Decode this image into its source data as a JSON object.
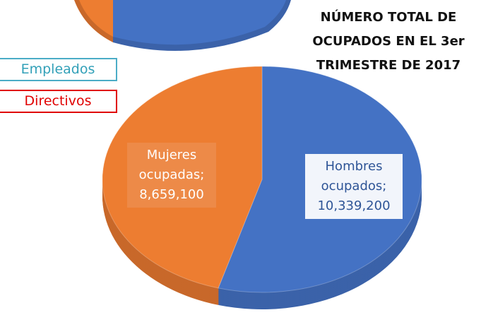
{
  "chart_data": {
    "type": "pie",
    "title": "NÚMERO TOTAL DE OCUPADOS EN EL 3er TRIMESTRE DE 2017",
    "categories": [
      "Hombres ocupados",
      "Mujeres ocupadas"
    ],
    "values": [
      10339200,
      8659100
    ],
    "value_labels": [
      "Hombres ocupados; 10,339,200",
      "Mujeres ocupadas; 8,659,100"
    ],
    "colors": [
      "#4472c4",
      "#ed7d31"
    ],
    "side_colors": [
      "#3b62a9",
      "#c8682a"
    ],
    "buttons": [
      "Empleados",
      "Directivos"
    ]
  }
}
